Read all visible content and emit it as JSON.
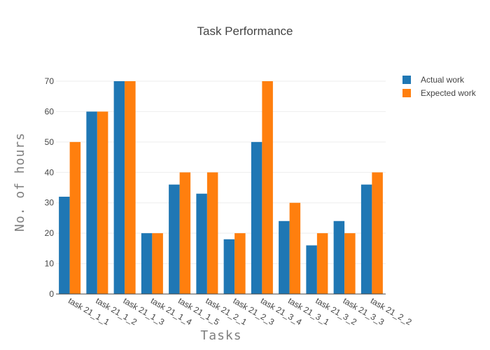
{
  "chart_data": {
    "type": "bar",
    "title": "Task Performance",
    "xlabel": "Tasks",
    "ylabel": "No. of hours",
    "categories": [
      "task 21_1_1",
      "task 21_1_2",
      "task 21_1_3",
      "task 21_1_4",
      "task 21_1_5",
      "task 21_2_1",
      "task 21_2_3",
      "task 21_3_4",
      "task 21_3_1",
      "task 21_3_2",
      "task 21_3_3",
      "task 21_2_2"
    ],
    "series": [
      {
        "name": "Actual work",
        "color": "#1f77b4",
        "values": [
          32,
          60,
          70,
          20,
          36,
          33,
          18,
          50,
          24,
          16,
          24,
          36
        ]
      },
      {
        "name": "Expected work",
        "color": "#ff7f0e",
        "values": [
          50,
          60,
          70,
          20,
          40,
          40,
          20,
          70,
          30,
          20,
          20,
          40
        ]
      }
    ],
    "ylim": [
      0,
      70
    ],
    "yticks": [
      0,
      10,
      20,
      30,
      40,
      50,
      60,
      70
    ],
    "grid": true,
    "legend_position": "top-right"
  }
}
